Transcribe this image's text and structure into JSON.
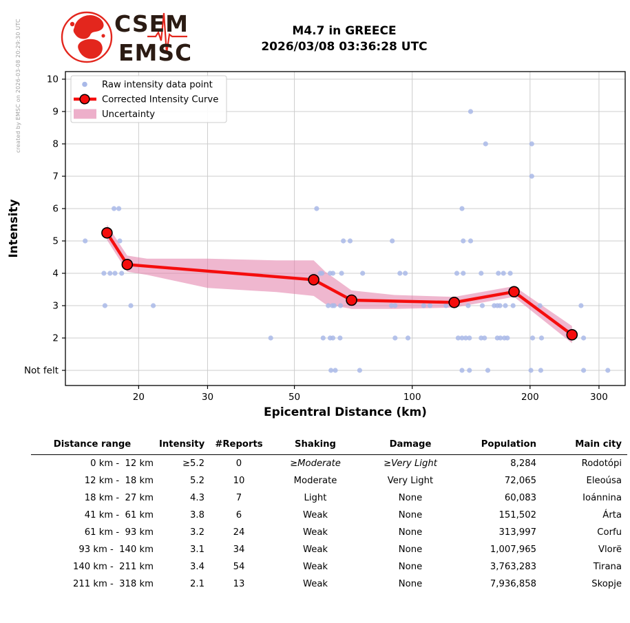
{
  "meta": {
    "created_by": "created by EMSC on 2026-03-08 20:29:30 UTC"
  },
  "logo": {
    "top_text": "CSEM",
    "bottom_text": "EMSC",
    "accent_color": "#e3261d",
    "text_color": "#2b1b13"
  },
  "header": {
    "title_line1": "M4.7 in GREECE",
    "title_line2": "2026/03/08 03:36:28 UTC"
  },
  "chart_data": {
    "type": "scatter",
    "xlabel": "Epicentral Distance (km)",
    "ylabel": "Intensity",
    "x_scale": "log",
    "x_range": [
      13,
      350
    ],
    "x_ticks": [
      20,
      30,
      50,
      100,
      200,
      300
    ],
    "y_ticks": [
      {
        "value": 10,
        "label": "10"
      },
      {
        "value": 9,
        "label": "9"
      },
      {
        "value": 8,
        "label": "8"
      },
      {
        "value": 7,
        "label": "7"
      },
      {
        "value": 6,
        "label": "6"
      },
      {
        "value": 5,
        "label": "5"
      },
      {
        "value": 4,
        "label": "4"
      },
      {
        "value": 3,
        "label": "3"
      },
      {
        "value": 2,
        "label": "2"
      },
      {
        "value": 1,
        "label": "Not felt"
      }
    ],
    "grid": true,
    "legend_position": "upper left",
    "legend": [
      {
        "label": "Raw intensity data point",
        "type": "dot",
        "color": "#a9b9e8"
      },
      {
        "label": "Corrected Intensity Curve",
        "type": "line-marker",
        "color": "#f50d0d"
      },
      {
        "label": "Uncertainty",
        "type": "band",
        "color": "#e27ba8",
        "swatch": "#edafca"
      }
    ],
    "raw_points": [
      [
        14.6,
        5
      ],
      [
        17.9,
        5
      ],
      [
        17.3,
        6
      ],
      [
        17.8,
        6
      ],
      [
        16.3,
        4
      ],
      [
        16.9,
        4
      ],
      [
        17.4,
        4
      ],
      [
        18.1,
        4
      ],
      [
        16.4,
        3
      ],
      [
        19.1,
        3
      ],
      [
        21.8,
        3
      ],
      [
        57,
        6
      ],
      [
        66.7,
        5
      ],
      [
        69.4,
        5
      ],
      [
        88.9,
        5
      ],
      [
        58.2,
        4
      ],
      [
        58.8,
        4
      ],
      [
        61.7,
        4
      ],
      [
        62.7,
        4
      ],
      [
        66,
        4
      ],
      [
        74.7,
        4
      ],
      [
        93,
        4
      ],
      [
        96,
        4
      ],
      [
        61,
        3
      ],
      [
        62.5,
        3
      ],
      [
        63.2,
        3
      ],
      [
        65.6,
        3
      ],
      [
        88.5,
        3
      ],
      [
        90.4,
        3
      ],
      [
        107,
        3
      ],
      [
        111,
        3
      ],
      [
        43.5,
        2
      ],
      [
        59.2,
        2
      ],
      [
        61.7,
        2
      ],
      [
        62.7,
        2
      ],
      [
        65.4,
        2
      ],
      [
        90.4,
        2
      ],
      [
        97.5,
        2
      ],
      [
        62,
        1
      ],
      [
        63.6,
        1
      ],
      [
        73.4,
        1
      ],
      [
        141,
        9
      ],
      [
        154,
        8
      ],
      [
        202,
        8
      ],
      [
        202,
        7
      ],
      [
        134,
        6
      ],
      [
        135,
        5
      ],
      [
        141,
        5
      ],
      [
        130,
        4
      ],
      [
        135,
        4
      ],
      [
        150,
        4
      ],
      [
        166,
        4
      ],
      [
        171,
        4
      ],
      [
        178,
        4
      ],
      [
        122,
        3
      ],
      [
        139,
        3
      ],
      [
        151,
        3
      ],
      [
        162,
        3
      ],
      [
        165,
        3
      ],
      [
        167.5,
        3
      ],
      [
        173,
        3
      ],
      [
        181,
        3
      ],
      [
        212,
        3
      ],
      [
        270,
        3
      ],
      [
        131,
        2
      ],
      [
        134,
        2
      ],
      [
        137,
        2
      ],
      [
        140,
        2
      ],
      [
        150,
        2
      ],
      [
        153,
        2
      ],
      [
        165,
        2
      ],
      [
        168,
        2
      ],
      [
        172,
        2
      ],
      [
        175,
        2
      ],
      [
        203,
        2
      ],
      [
        214,
        2
      ],
      [
        274,
        2
      ],
      [
        134,
        1
      ],
      [
        140,
        1
      ],
      [
        156,
        1
      ],
      [
        201,
        1
      ],
      [
        213,
        1
      ],
      [
        274,
        1
      ],
      [
        316,
        1
      ]
    ],
    "corrected_curve": [
      [
        16.6,
        5.25
      ],
      [
        18.7,
        4.27
      ],
      [
        56,
        3.8
      ],
      [
        70,
        3.17
      ],
      [
        128,
        3.1
      ],
      [
        182,
        3.43
      ],
      [
        256,
        2.1
      ]
    ],
    "uncertainty_band": {
      "upper": [
        [
          16.6,
          5.5
        ],
        [
          18.7,
          4.55
        ],
        [
          21,
          4.45
        ],
        [
          30,
          4.45
        ],
        [
          45,
          4.4
        ],
        [
          56,
          4.4
        ],
        [
          60,
          4.05
        ],
        [
          70,
          3.47
        ],
        [
          90,
          3.33
        ],
        [
          128,
          3.27
        ],
        [
          182,
          3.6
        ],
        [
          256,
          2.37
        ]
      ],
      "lower": [
        [
          16.6,
          5.03
        ],
        [
          18.7,
          4.05
        ],
        [
          21,
          3.95
        ],
        [
          30,
          3.55
        ],
        [
          45,
          3.42
        ],
        [
          56,
          3.3
        ],
        [
          60,
          3.05
        ],
        [
          70,
          2.9
        ],
        [
          90,
          2.9
        ],
        [
          128,
          2.94
        ],
        [
          182,
          3.27
        ],
        [
          256,
          1.84
        ]
      ]
    }
  },
  "table": {
    "headers": [
      "Distance range",
      "Intensity",
      "#Reports",
      "Shaking",
      "Damage",
      "Population",
      "Main city"
    ],
    "rows": [
      [
        "0 km -  12 km",
        "≥5.2",
        "0",
        "≥Moderate",
        "≥Very Light",
        "8,284",
        "Rodotópi"
      ],
      [
        "12 km -  18 km",
        "5.2",
        "10",
        "Moderate",
        "Very Light",
        "72,065",
        "Eleoúsa"
      ],
      [
        "18 km -  27 km",
        "4.3",
        "7",
        "Light",
        "None",
        "60,083",
        "Ioánnina"
      ],
      [
        "41 km -  61 km",
        "3.8",
        "6",
        "Weak",
        "None",
        "151,502",
        "Árta"
      ],
      [
        "61 km -  93 km",
        "3.2",
        "24",
        "Weak",
        "None",
        "313,997",
        "Corfu"
      ],
      [
        "93 km -  140 km",
        "3.1",
        "34",
        "Weak",
        "None",
        "1,007,965",
        "Vlorë"
      ],
      [
        "140 km -  211 km",
        "3.4",
        "54",
        "Weak",
        "None",
        "3,763,283",
        "Tirana"
      ],
      [
        "211 km -  318 km",
        "2.1",
        "13",
        "Weak",
        "None",
        "7,936,858",
        "Skopje"
      ]
    ]
  }
}
